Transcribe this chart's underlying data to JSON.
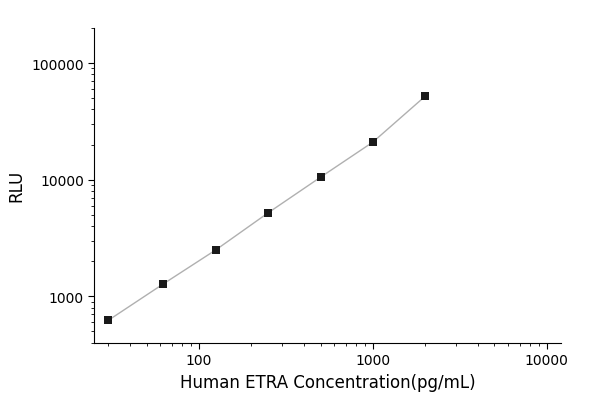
{
  "x": [
    30,
    62,
    125,
    250,
    500,
    1000,
    2000
  ],
  "y": [
    620,
    1270,
    2500,
    5200,
    10500,
    21000,
    52000
  ],
  "xlabel": "Human ETRA Concentration(pg/mL)",
  "ylabel": "RLU",
  "xlim": [
    25,
    12000
  ],
  "ylim": [
    400,
    200000
  ],
  "line_color": "#b0b0b0",
  "marker_color": "#1a1a1a",
  "marker": "s",
  "marker_size": 6,
  "line_width": 1.0,
  "background_color": "#ffffff",
  "xticks": [
    100,
    1000,
    10000
  ],
  "yticks": [
    1000,
    10000,
    100000
  ],
  "xlabel_fontsize": 12,
  "ylabel_fontsize": 12,
  "tick_labelsize": 10
}
